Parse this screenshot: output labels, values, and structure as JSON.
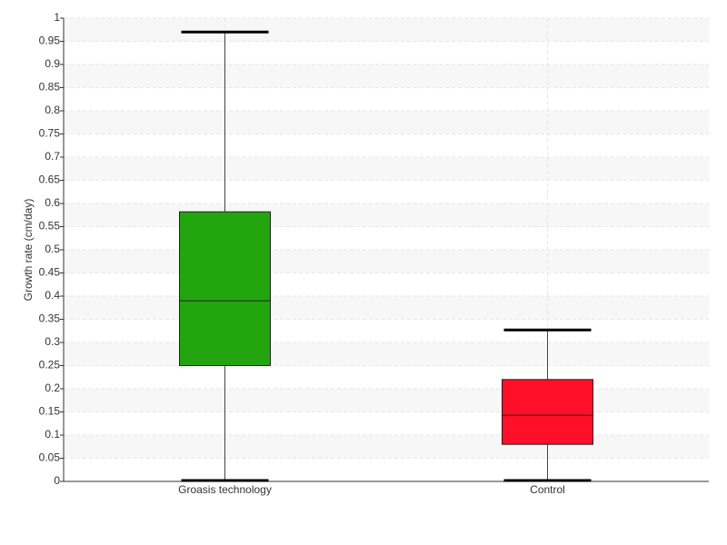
{
  "chart_data": {
    "type": "box",
    "y_label": "Growth rate (cm/day)",
    "categories": [
      "Groasis technology",
      "Control"
    ],
    "colors": [
      "#22a50f",
      "#ff0f28"
    ],
    "min": [
      0,
      0
    ],
    "q1": [
      0.25,
      0.08
    ],
    "median": [
      0.39,
      0.143
    ],
    "q3": [
      0.582,
      0.22
    ],
    "max": [
      0.97,
      0.327
    ],
    "ylim": [
      0,
      1
    ],
    "yticks": [
      0,
      0.05,
      0.1,
      0.15,
      0.2,
      0.25,
      0.3,
      0.35,
      0.4,
      0.45,
      0.5,
      0.55,
      0.6,
      0.65,
      0.7,
      0.75,
      0.8,
      0.85,
      0.9,
      0.95,
      1
    ],
    "grid": true
  }
}
